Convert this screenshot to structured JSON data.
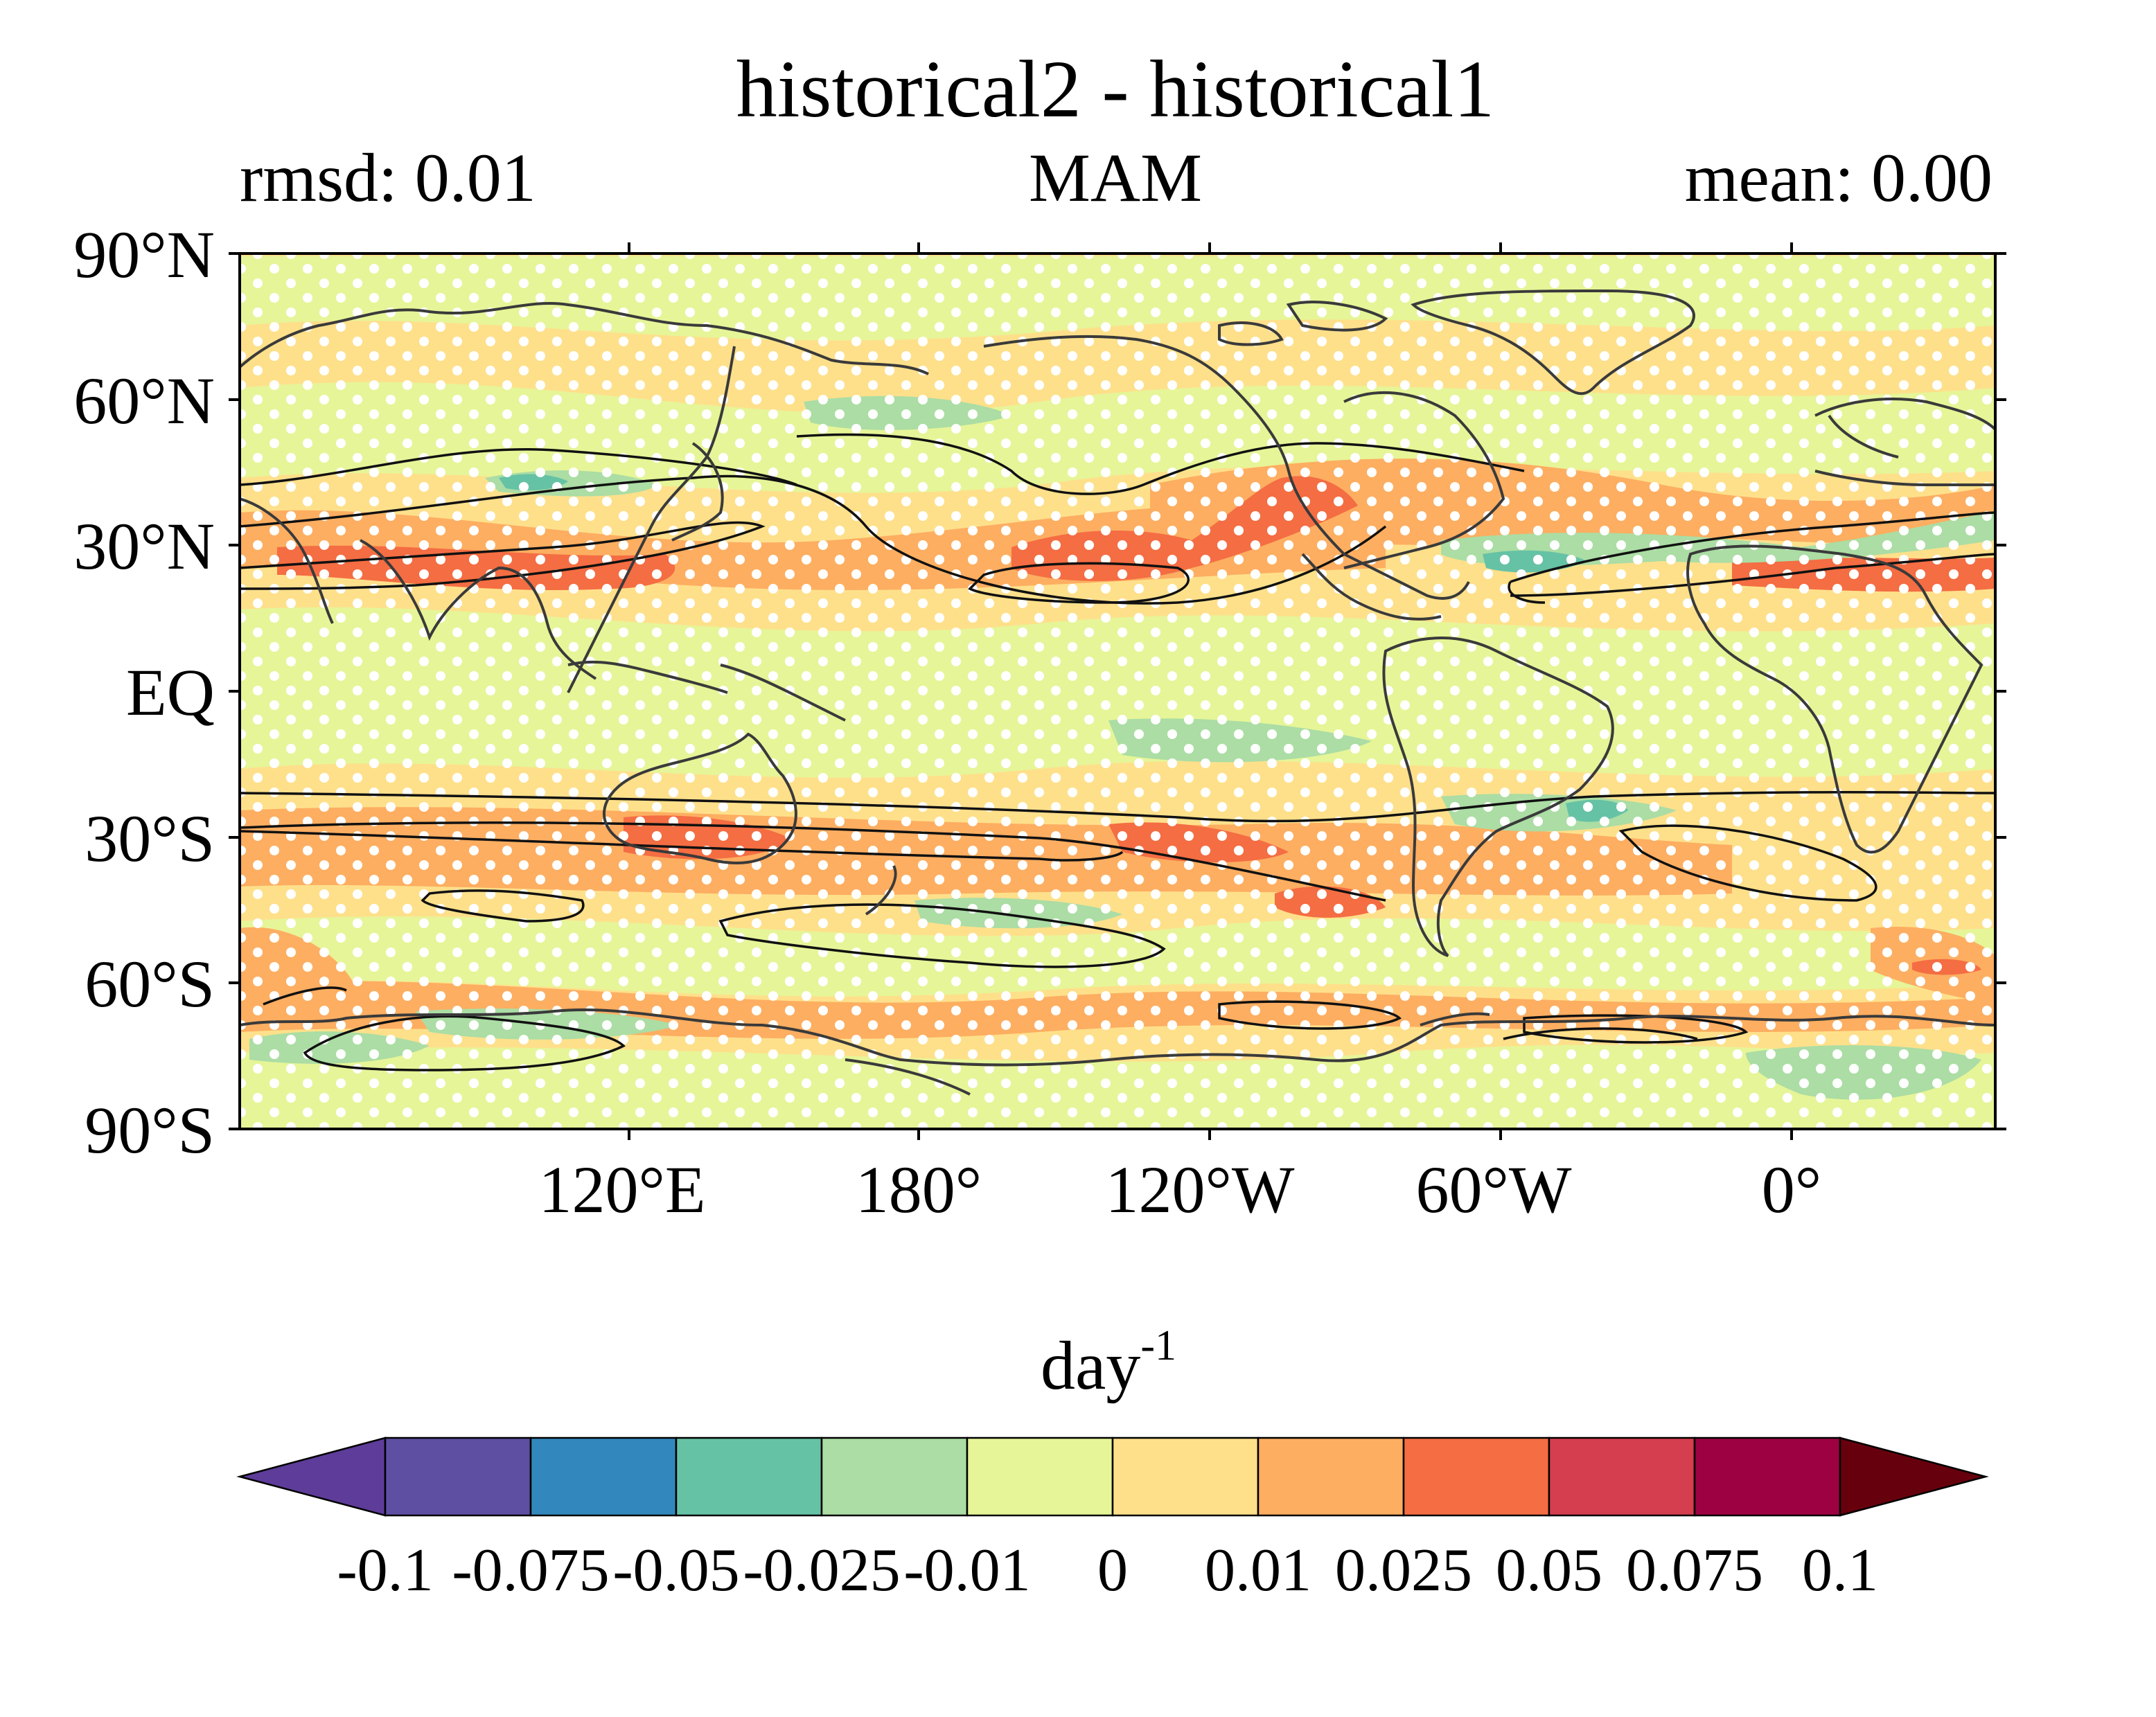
{
  "title": "historical2 - historical1",
  "subtitle_left": "rmsd: 0.01",
  "subtitle_center": "MAM",
  "subtitle_right": "mean: 0.00",
  "y_ticks": [
    "90°N",
    "60°N",
    "30°N",
    "EQ",
    "30°S",
    "60°S",
    "90°S"
  ],
  "x_ticks": [
    "120°E",
    "180°",
    "120°W",
    "60°W",
    "0°"
  ],
  "colorbar": {
    "unit_base": "day",
    "unit_exp": "-1",
    "tick_labels": [
      "-0.1",
      "-0.075",
      "-0.05",
      "-0.025",
      "-0.01",
      "0",
      "0.01",
      "0.025",
      "0.05",
      "0.075",
      "0.1"
    ],
    "colors": [
      "#5e3c99",
      "#5e4fa2",
      "#3288bd",
      "#66c2a5",
      "#abdda4",
      "#e6f598",
      "#fee08b",
      "#fdae61",
      "#f46d43",
      "#d53e4f",
      "#9e0142",
      "#67000d"
    ]
  },
  "colors": {
    "land_outline": "#3a3a3a",
    "contour": "#111111",
    "stipple": "#ffffff",
    "background_field": "#fee08b"
  }
}
